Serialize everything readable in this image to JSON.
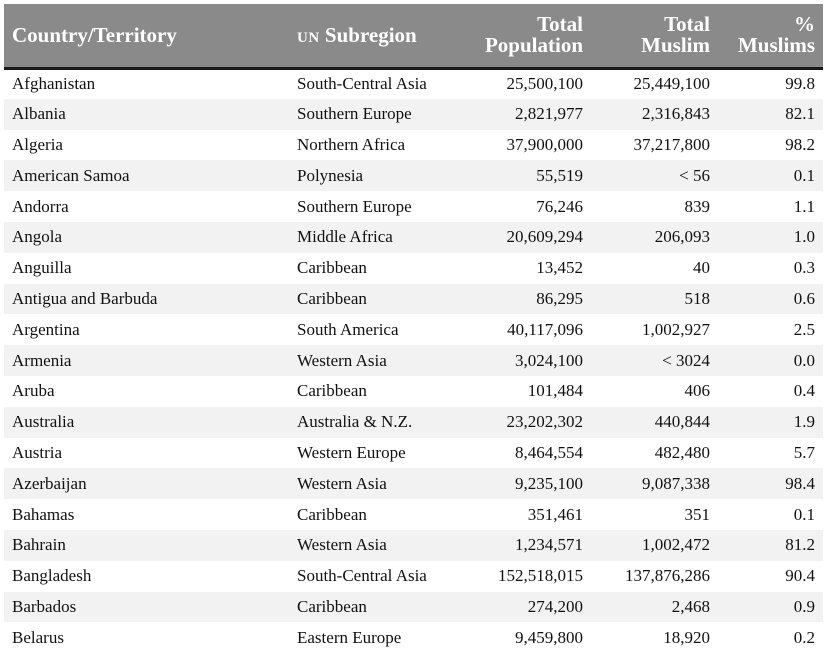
{
  "table": {
    "headers": {
      "country": "Country/Territory",
      "region_prefix": "UN",
      "region": "Subregion",
      "total_population_line1": "Total",
      "total_population_line2": "Population",
      "total_muslim_line1": "Total",
      "total_muslim_line2": "Muslim",
      "pct_line1": "%",
      "pct_line2": "Muslims"
    },
    "rows": [
      {
        "country": "Afghanistan",
        "region": "South-Central Asia",
        "population": "25,500,100",
        "muslim": "25,449,100",
        "pct": "99.8"
      },
      {
        "country": "Albania",
        "region": "Southern Europe",
        "population": "2,821,977",
        "muslim": "2,316,843",
        "pct": "82.1"
      },
      {
        "country": "Algeria",
        "region": "Northern Africa",
        "population": "37,900,000",
        "muslim": "37,217,800",
        "pct": "98.2"
      },
      {
        "country": "American Samoa",
        "region": "Polynesia",
        "population": "55,519",
        "muslim": "< 56",
        "pct": "0.1"
      },
      {
        "country": "Andorra",
        "region": "Southern Europe",
        "population": "76,246",
        "muslim": "839",
        "pct": "1.1"
      },
      {
        "country": "Angola",
        "region": "Middle Africa",
        "population": "20,609,294",
        "muslim": "206,093",
        "pct": "1.0"
      },
      {
        "country": "Anguilla",
        "region": "Caribbean",
        "population": "13,452",
        "muslim": "40",
        "pct": "0.3"
      },
      {
        "country": "Antigua and Barbuda",
        "region": "Caribbean",
        "population": "86,295",
        "muslim": "518",
        "pct": "0.6"
      },
      {
        "country": "Argentina",
        "region": "South America",
        "population": "40,117,096",
        "muslim": "1,002,927",
        "pct": "2.5"
      },
      {
        "country": "Armenia",
        "region": "Western Asia",
        "population": "3,024,100",
        "muslim": "< 3024",
        "pct": "0.0"
      },
      {
        "country": "Aruba",
        "region": "Caribbean",
        "population": "101,484",
        "muslim": "406",
        "pct": "0.4"
      },
      {
        "country": "Australia",
        "region": "Australia & N.Z.",
        "population": "23,202,302",
        "muslim": "440,844",
        "pct": "1.9"
      },
      {
        "country": "Austria",
        "region": "Western Europe",
        "population": "8,464,554",
        "muslim": "482,480",
        "pct": "5.7"
      },
      {
        "country": "Azerbaijan",
        "region": "Western Asia",
        "population": "9,235,100",
        "muslim": "9,087,338",
        "pct": "98.4"
      },
      {
        "country": "Bahamas",
        "region": "Caribbean",
        "population": "351,461",
        "muslim": "351",
        "pct": "0.1"
      },
      {
        "country": "Bahrain",
        "region": "Western Asia",
        "population": "1,234,571",
        "muslim": "1,002,472",
        "pct": "81.2"
      },
      {
        "country": "Bangladesh",
        "region": "South-Central Asia",
        "population": "152,518,015",
        "muslim": "137,876,286",
        "pct": "90.4"
      },
      {
        "country": "Barbados",
        "region": "Caribbean",
        "population": "274,200",
        "muslim": "2,468",
        "pct": "0.9"
      },
      {
        "country": "Belarus",
        "region": "Eastern Europe",
        "population": "9,459,800",
        "muslim": "18,920",
        "pct": "0.2"
      }
    ]
  }
}
